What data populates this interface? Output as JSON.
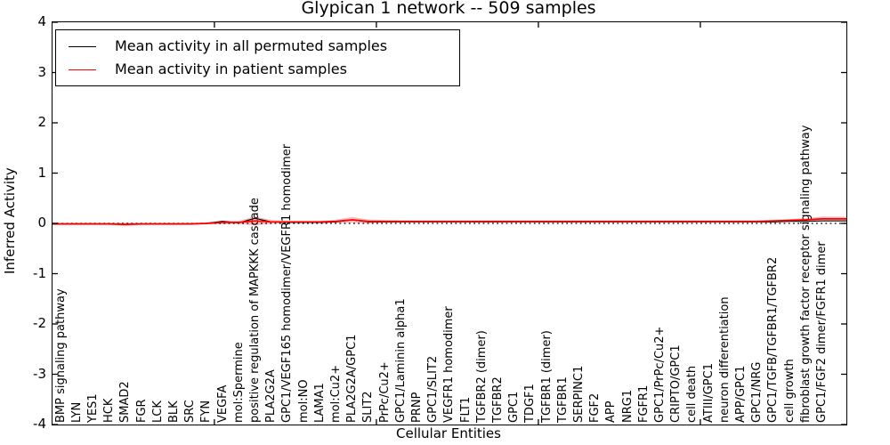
{
  "title": "Glypican 1 network -- 509 samples",
  "legend": {
    "entries": [
      {
        "label": "Mean activity in all permuted samples",
        "color": "#000000"
      },
      {
        "label": "Mean activity in patient samples",
        "color": "#ff0000"
      }
    ]
  },
  "chart_data": {
    "type": "line",
    "title": "Glypican 1 network -- 509 samples",
    "xlabel": "Cellular Entities",
    "ylabel": "Inferred Activity",
    "ylim": [
      -4,
      4
    ],
    "yticks": [
      4,
      3,
      2,
      1,
      0,
      -1,
      -2,
      -3,
      -4
    ],
    "xticks_at_category_index": [
      10,
      20,
      30,
      40
    ],
    "grid": false,
    "zero_line_style": "dotted",
    "legend_position": "upper left",
    "categories": [
      "BMP signaling pathway",
      "LYN",
      "YES1",
      "HCK",
      "SMAD2",
      "FGR",
      "LCK",
      "BLK",
      "SRC",
      "FYN",
      "VEGFA",
      "mol:Spermine",
      "positive regulation of MAPKKK cascade",
      "PLA2G2A",
      "GPC1/VEGF165 homodimer/VEGFR1 homodimer",
      "mol:NO",
      "LAMA1",
      "mol:Cu2+",
      "PLA2G2A/GPC1",
      "SLIT2",
      "PrPc/Cu2+",
      "GPC1/Laminin alpha1",
      "PRNP",
      "GPC1/SLIT2",
      "VEGFR1 homodimer",
      "FLT1",
      "TGFBR2 (dimer)",
      "TGFBR2",
      "GPC1",
      "TDGF1",
      "TGFBR1 (dimer)",
      "TGFBR1",
      "SERPINC1",
      "FGF2",
      "APP",
      "NRG1",
      "FGFR1",
      "GPC1/PrPc/Cu2+",
      "CRIPTO/GPC1",
      "cell death",
      "ATIII/GPC1",
      "neuron differentiation",
      "APP/GPC1",
      "GPC1/NRG",
      "GPC1/TGFB/TGFBR1/TGFBR2",
      "cell growth",
      "fibroblast growth factor receptor signaling pathway",
      "GPC1/FGF2 dimer/FGFR1 dimer"
    ],
    "series": [
      {
        "name": "Mean activity in all permuted samples",
        "color": "#000000",
        "values": [
          -0.01,
          -0.01,
          -0.01,
          -0.01,
          -0.02,
          -0.01,
          -0.01,
          -0.01,
          -0.01,
          0.0,
          0.04,
          0.01,
          0.1,
          0.03,
          0.02,
          0.02,
          0.02,
          0.03,
          0.07,
          0.03,
          0.03,
          0.03,
          0.03,
          0.03,
          0.03,
          0.03,
          0.03,
          0.03,
          0.03,
          0.03,
          0.03,
          0.03,
          0.03,
          0.03,
          0.03,
          0.03,
          0.03,
          0.03,
          0.03,
          0.03,
          0.03,
          0.03,
          0.03,
          0.03,
          0.03,
          0.04,
          0.04,
          0.05
        ]
      },
      {
        "name": "Mean activity in patient samples",
        "color": "#ff0000",
        "band_color": "rgba(255,0,0,0.25)",
        "values": [
          -0.01,
          -0.01,
          -0.01,
          -0.01,
          -0.02,
          -0.01,
          -0.01,
          -0.01,
          -0.01,
          0.0,
          0.02,
          0.02,
          0.05,
          0.03,
          0.03,
          0.03,
          0.03,
          0.04,
          0.07,
          0.04,
          0.04,
          0.04,
          0.04,
          0.04,
          0.04,
          0.04,
          0.04,
          0.04,
          0.04,
          0.04,
          0.04,
          0.04,
          0.04,
          0.04,
          0.04,
          0.04,
          0.04,
          0.04,
          0.04,
          0.04,
          0.04,
          0.04,
          0.04,
          0.04,
          0.05,
          0.06,
          0.07,
          0.09
        ],
        "band_halfwidth": [
          0.02,
          0.02,
          0.02,
          0.02,
          0.035,
          0.02,
          0.02,
          0.02,
          0.02,
          0.02,
          0.035,
          0.03,
          0.09,
          0.04,
          0.02,
          0.02,
          0.02,
          0.03,
          0.06,
          0.04,
          0.025,
          0.02,
          0.015,
          0.015,
          0.015,
          0.015,
          0.015,
          0.015,
          0.015,
          0.015,
          0.015,
          0.015,
          0.015,
          0.015,
          0.015,
          0.015,
          0.015,
          0.015,
          0.015,
          0.015,
          0.015,
          0.015,
          0.015,
          0.015,
          0.02,
          0.025,
          0.03,
          0.045
        ]
      }
    ]
  }
}
